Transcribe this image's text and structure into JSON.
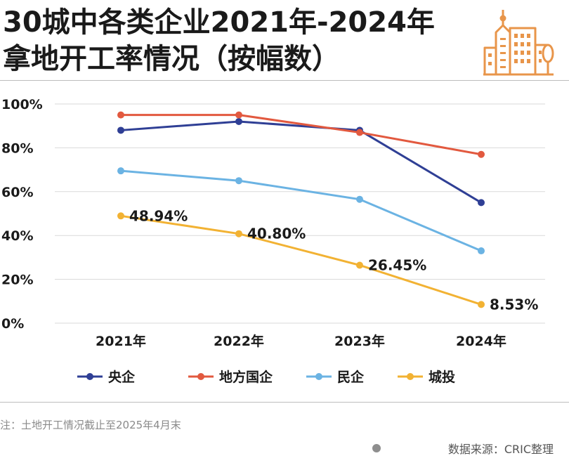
{
  "header": {
    "title_line1": "30城中各类企业2021年-2024年",
    "title_line2": "拿地开工率情况（按幅数）",
    "icon": "building-icon",
    "icon_color": "#e8954a"
  },
  "chart_data": {
    "type": "line",
    "title": "30城中各类企业2021年-2024年拿地开工率情况（按幅数）",
    "xlabel": "",
    "ylabel": "",
    "categories": [
      "2021年",
      "2022年",
      "2023年",
      "2024年"
    ],
    "y_ticks": [
      "0%",
      "20%",
      "40%",
      "60%",
      "80%",
      "100%"
    ],
    "ylim": [
      0,
      100
    ],
    "grid": true,
    "legend_position": "bottom",
    "series": [
      {
        "name": "央企",
        "color": "#2f3f95",
        "values": [
          88,
          92,
          88,
          55
        ]
      },
      {
        "name": "地方国企",
        "color": "#e2593f",
        "values": [
          95,
          95,
          87,
          77
        ]
      },
      {
        "name": "民企",
        "color": "#6bb3e3",
        "values": [
          69.5,
          65,
          56.5,
          33
        ]
      },
      {
        "name": "城投",
        "color": "#f2b233",
        "values": [
          48.94,
          40.8,
          26.45,
          8.53
        ],
        "labels": [
          "48.94%",
          "40.80%",
          "26.45%",
          "8.53%"
        ]
      }
    ]
  },
  "footer": {
    "note": "注：土地开工情况截止至2025年4月末",
    "source": "数据来源：CRIC整理"
  }
}
